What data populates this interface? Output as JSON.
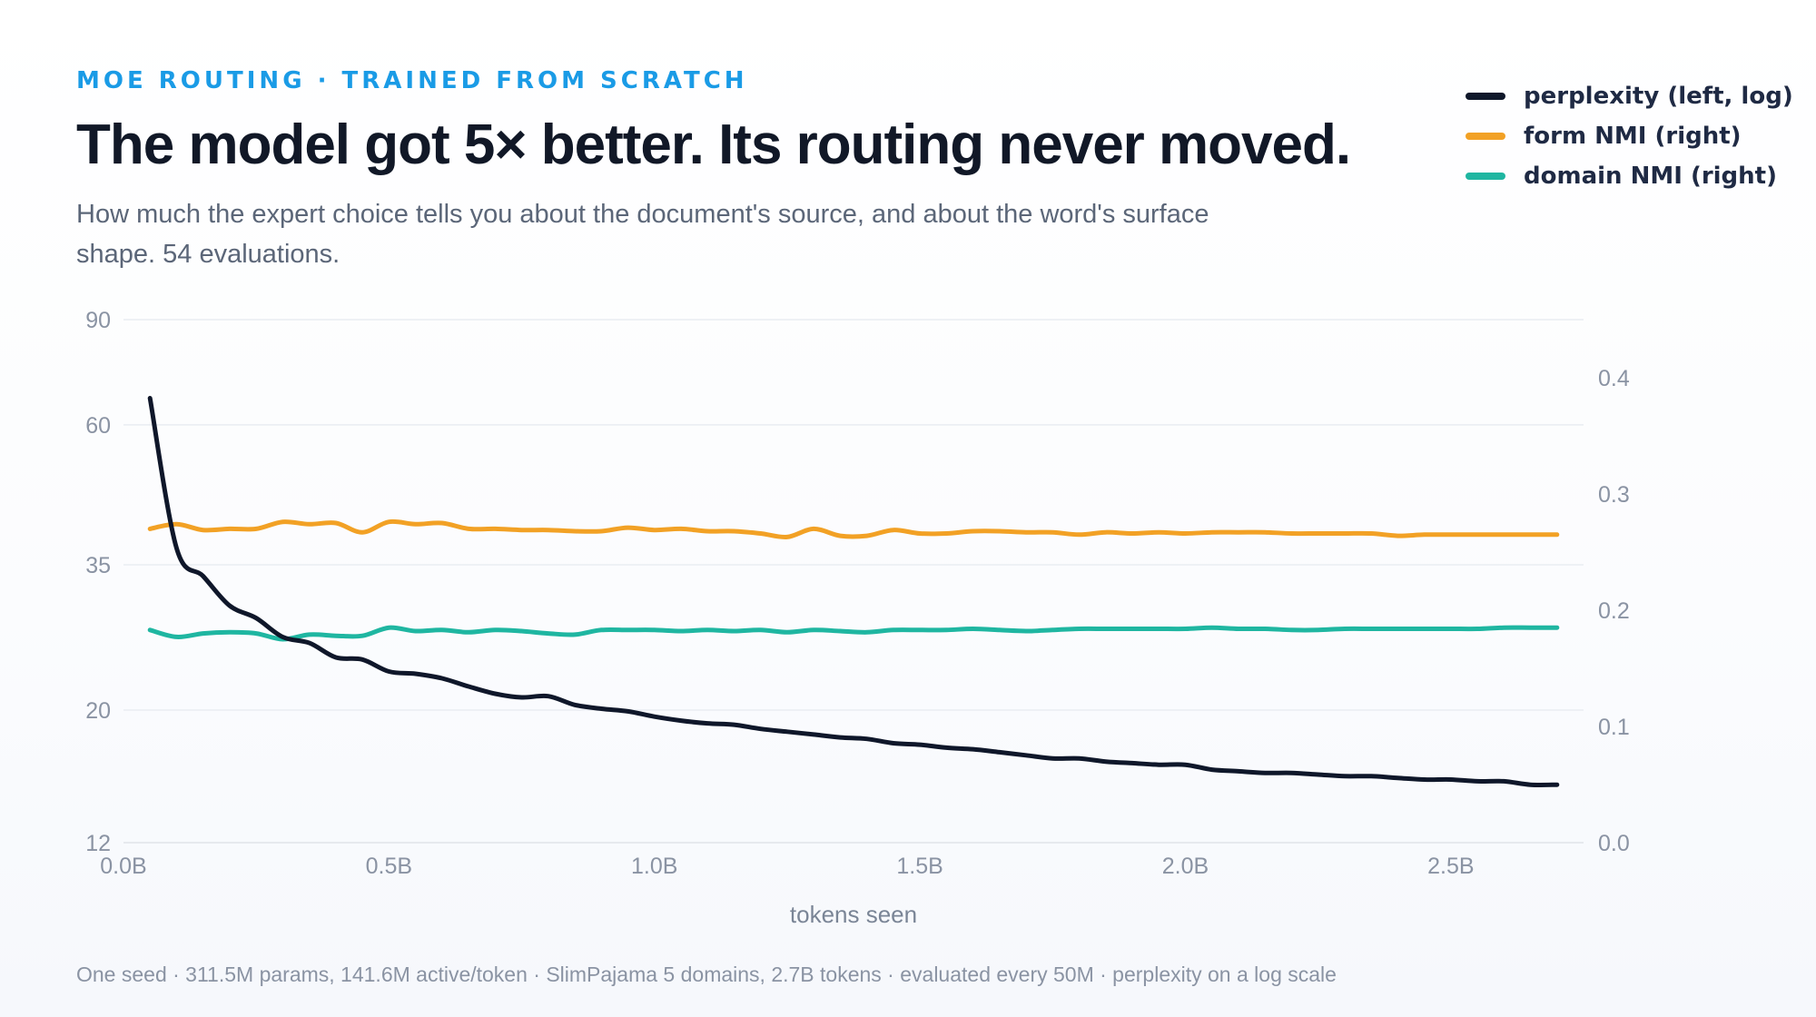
{
  "header": {
    "eyebrow": "MOE ROUTING · TRAINED FROM SCRATCH",
    "title": "The model got 5× better. Its routing never moved.",
    "subtitle": "How much the expert choice tells you about the document's source, and about the word's surface shape. 54 evaluations."
  },
  "legend": [
    {
      "label": "perplexity (left, log)",
      "color": "#0f172a"
    },
    {
      "label": "form NMI (right)",
      "color": "#f2a125"
    },
    {
      "label": "domain NMI (right)",
      "color": "#1fb6a1"
    }
  ],
  "footnote": "One seed · 311.5M params, 141.6M active/token · SlimPajama 5 domains, 2.7B tokens · evaluated every 50M · perplexity on a log scale",
  "chart_data": {
    "type": "line",
    "title": "The model got 5× better. Its routing never moved.",
    "xlabel": "tokens seen",
    "x_unit": "billions of tokens",
    "xlim": [
      0,
      2.75
    ],
    "x_ticks": [
      0,
      0.5,
      1.0,
      1.5,
      2.0,
      2.5
    ],
    "x_tick_labels": [
      "0.0B",
      "0.5B",
      "1.0B",
      "1.5B",
      "2.0B",
      "2.5B"
    ],
    "y_left": {
      "scale": "log",
      "range": [
        12,
        90
      ],
      "ticks": [
        12,
        20,
        35,
        60,
        90
      ],
      "tick_labels": [
        "12",
        "20",
        "35",
        "60",
        "90"
      ]
    },
    "y_right": {
      "scale": "linear",
      "range": [
        0,
        0.45
      ],
      "ticks": [
        0,
        0.1,
        0.2,
        0.3,
        0.4
      ],
      "tick_labels": [
        "0.0",
        "0.1",
        "0.2",
        "0.3",
        "0.4"
      ]
    },
    "grid": true,
    "legend_position": "top-right",
    "x": [
      0.05,
      0.1,
      0.15,
      0.2,
      0.25,
      0.3,
      0.35,
      0.4,
      0.45,
      0.5,
      0.55,
      0.6,
      0.65,
      0.7,
      0.75,
      0.8,
      0.85,
      0.9,
      0.95,
      1.0,
      1.05,
      1.1,
      1.15,
      1.2,
      1.25,
      1.3,
      1.35,
      1.4,
      1.45,
      1.5,
      1.55,
      1.6,
      1.65,
      1.7,
      1.75,
      1.8,
      1.85,
      1.9,
      1.95,
      2.0,
      2.05,
      2.1,
      2.15,
      2.2,
      2.25,
      2.3,
      2.35,
      2.4,
      2.45,
      2.5,
      2.55,
      2.6,
      2.65,
      2.7
    ],
    "series": [
      {
        "name": "perplexity (left, log)",
        "axis": "left",
        "color": "#0f172a",
        "values": [
          66.5,
          37.3,
          33.5,
          29.9,
          28.5,
          26.5,
          25.9,
          24.5,
          24.3,
          23.2,
          23.0,
          22.6,
          21.9,
          21.3,
          21.0,
          21.1,
          20.4,
          20.1,
          19.9,
          19.5,
          19.2,
          19.0,
          18.9,
          18.6,
          18.4,
          18.2,
          18.0,
          17.9,
          17.6,
          17.5,
          17.3,
          17.2,
          17.0,
          16.8,
          16.6,
          16.6,
          16.4,
          16.3,
          16.2,
          16.2,
          15.9,
          15.8,
          15.7,
          15.7,
          15.6,
          15.5,
          15.5,
          15.4,
          15.3,
          15.3,
          15.2,
          15.2,
          15.0,
          15.0
        ]
      },
      {
        "name": "form NMI (right)",
        "axis": "right",
        "color": "#f2a125",
        "values": [
          0.27,
          0.274,
          0.269,
          0.27,
          0.27,
          0.276,
          0.274,
          0.275,
          0.267,
          0.276,
          0.274,
          0.275,
          0.27,
          0.27,
          0.269,
          0.269,
          0.268,
          0.268,
          0.271,
          0.269,
          0.27,
          0.268,
          0.268,
          0.266,
          0.263,
          0.27,
          0.264,
          0.264,
          0.269,
          0.266,
          0.266,
          0.268,
          0.268,
          0.267,
          0.267,
          0.265,
          0.267,
          0.266,
          0.267,
          0.266,
          0.267,
          0.267,
          0.267,
          0.266,
          0.266,
          0.266,
          0.266,
          0.264,
          0.265,
          0.265,
          0.265,
          0.265,
          0.265,
          0.265
        ]
      },
      {
        "name": "domain NMI (right)",
        "axis": "right",
        "color": "#1fb6a1",
        "values": [
          0.183,
          0.177,
          0.18,
          0.181,
          0.18,
          0.175,
          0.179,
          0.178,
          0.178,
          0.185,
          0.182,
          0.183,
          0.181,
          0.183,
          0.182,
          0.18,
          0.179,
          0.183,
          0.183,
          0.183,
          0.182,
          0.183,
          0.182,
          0.183,
          0.181,
          0.183,
          0.182,
          0.181,
          0.183,
          0.183,
          0.183,
          0.184,
          0.183,
          0.182,
          0.183,
          0.184,
          0.184,
          0.184,
          0.184,
          0.184,
          0.185,
          0.184,
          0.184,
          0.183,
          0.183,
          0.184,
          0.184,
          0.184,
          0.184,
          0.184,
          0.184,
          0.185,
          0.185,
          0.185
        ]
      }
    ]
  }
}
